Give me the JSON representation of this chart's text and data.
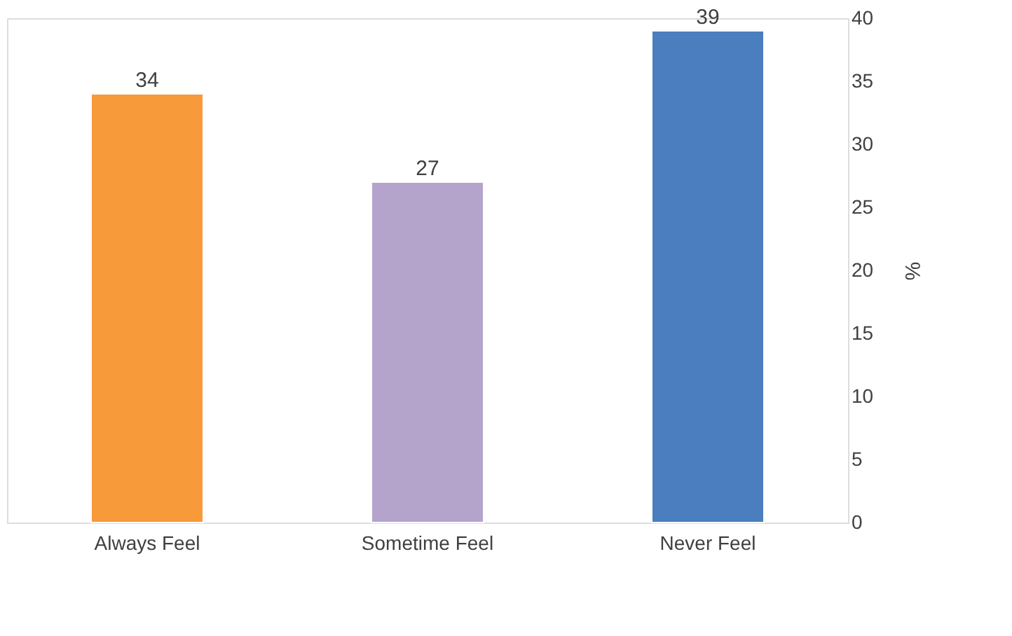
{
  "chart_data": {
    "type": "bar",
    "categories": [
      "Always Feel",
      "Sometime Feel",
      "Never Feel"
    ],
    "values": [
      34,
      27,
      39
    ],
    "colors": [
      "#f79a3a",
      "#b4a4cc",
      "#4a7ebf"
    ],
    "ylabel": "%",
    "ylim": [
      0,
      40
    ],
    "yticks": [
      0,
      5,
      10,
      15,
      20,
      25,
      30,
      35,
      40
    ],
    "grid": false,
    "data_labels": true
  }
}
